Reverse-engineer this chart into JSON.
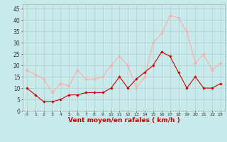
{
  "hours": [
    0,
    1,
    2,
    3,
    4,
    5,
    6,
    7,
    8,
    9,
    10,
    11,
    12,
    13,
    14,
    15,
    16,
    17,
    18,
    19,
    20,
    21,
    22,
    23
  ],
  "vent_moyen": [
    10,
    7,
    4,
    4,
    5,
    7,
    7,
    8,
    8,
    8,
    10,
    15,
    10,
    14,
    17,
    20,
    26,
    24,
    17,
    10,
    15,
    10,
    10,
    12
  ],
  "en_rafales": [
    18,
    16,
    14,
    8,
    12,
    11,
    18,
    14,
    14,
    15,
    20,
    24,
    20,
    10,
    15,
    30,
    34,
    42,
    41,
    35,
    21,
    25,
    18,
    21
  ],
  "color_moyen": "#cc0000",
  "color_rafales": "#ffaaaa",
  "bg_color": "#c8eaea",
  "grid_color": "#b0cccc",
  "xlabel": "Vent moyen/en rafales ( km/h )",
  "ylabel_ticks": [
    0,
    5,
    10,
    15,
    20,
    25,
    30,
    35,
    40,
    45
  ],
  "ylim": [
    0,
    47
  ],
  "xlim": [
    -0.5,
    23.5
  ],
  "title_color": "#cc0000"
}
